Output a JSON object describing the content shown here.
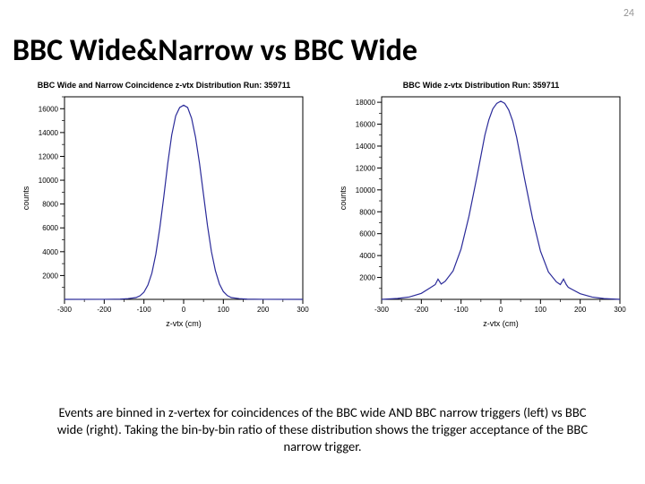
{
  "page_number": "24",
  "title": {
    "text": "BBC Wide&Narrow vs BBC Wide",
    "fontsize": 34
  },
  "caption": "Events are binned in z-vertex for coincidences of the BBC wide AND BBC narrow triggers (left) vs BBC wide (right). Taking the bin-by-bin ratio of these distribution shows the trigger acceptance of the BBC narrow trigger.",
  "left_plot": {
    "type": "histogram",
    "title": "BBC Wide and Narrow Coincidence z-vtx Distribution Run: 359711",
    "xlabel": "z-vtx (cm)",
    "ylabel": "counts",
    "xlim": [
      -300,
      300
    ],
    "ylim": [
      0,
      17000
    ],
    "xticks": [
      -300,
      -200,
      -100,
      0,
      100,
      200,
      300
    ],
    "yticks": [
      2000,
      4000,
      6000,
      8000,
      10000,
      12000,
      14000,
      16000
    ],
    "line_color": "#2a2a99",
    "line_width": 1.2,
    "background_color": "#ffffff",
    "axis_color": "#000000",
    "tick_fontsize": 8,
    "label_fontsize": 9,
    "data": {
      "x": [
        -300,
        -200,
        -160,
        -140,
        -120,
        -110,
        -100,
        -90,
        -80,
        -70,
        -60,
        -50,
        -40,
        -30,
        -20,
        -10,
        0,
        10,
        20,
        30,
        40,
        50,
        60,
        70,
        80,
        90,
        100,
        110,
        120,
        140,
        160,
        200,
        300
      ],
      "y": [
        0,
        5,
        20,
        60,
        150,
        300,
        600,
        1200,
        2200,
        3800,
        6000,
        8600,
        11400,
        13800,
        15400,
        16100,
        16300,
        16100,
        15200,
        13600,
        11400,
        8800,
        6200,
        4000,
        2400,
        1300,
        650,
        320,
        150,
        60,
        20,
        5,
        0
      ]
    }
  },
  "right_plot": {
    "type": "histogram",
    "title": "BBC Wide z-vtx Distribution Run: 359711",
    "xlabel": "z-vtx (cm)",
    "ylabel": "counts",
    "xlim": [
      -300,
      300
    ],
    "ylim": [
      0,
      18500
    ],
    "xticks": [
      -300,
      -200,
      -100,
      0,
      100,
      200,
      300
    ],
    "yticks": [
      2000,
      4000,
      6000,
      8000,
      10000,
      12000,
      14000,
      16000,
      18000
    ],
    "line_color": "#2a2a99",
    "line_width": 1.2,
    "background_color": "#ffffff",
    "axis_color": "#000000",
    "tick_fontsize": 8,
    "label_fontsize": 9,
    "data": {
      "x": [
        -300,
        -260,
        -230,
        -200,
        -180,
        -165,
        -158,
        -150,
        -140,
        -120,
        -100,
        -80,
        -60,
        -50,
        -40,
        -30,
        -20,
        -10,
        0,
        10,
        20,
        30,
        40,
        50,
        60,
        80,
        100,
        120,
        140,
        150,
        158,
        165,
        170,
        180,
        200,
        230,
        260,
        300
      ],
      "y": [
        0,
        80,
        220,
        550,
        1000,
        1350,
        1850,
        1400,
        1650,
        2600,
        4600,
        7600,
        11200,
        13100,
        15000,
        16400,
        17400,
        17900,
        18100,
        17900,
        17300,
        16300,
        14800,
        12900,
        11000,
        7400,
        4400,
        2500,
        1600,
        1350,
        1850,
        1350,
        1100,
        900,
        520,
        210,
        70,
        0
      ]
    }
  }
}
